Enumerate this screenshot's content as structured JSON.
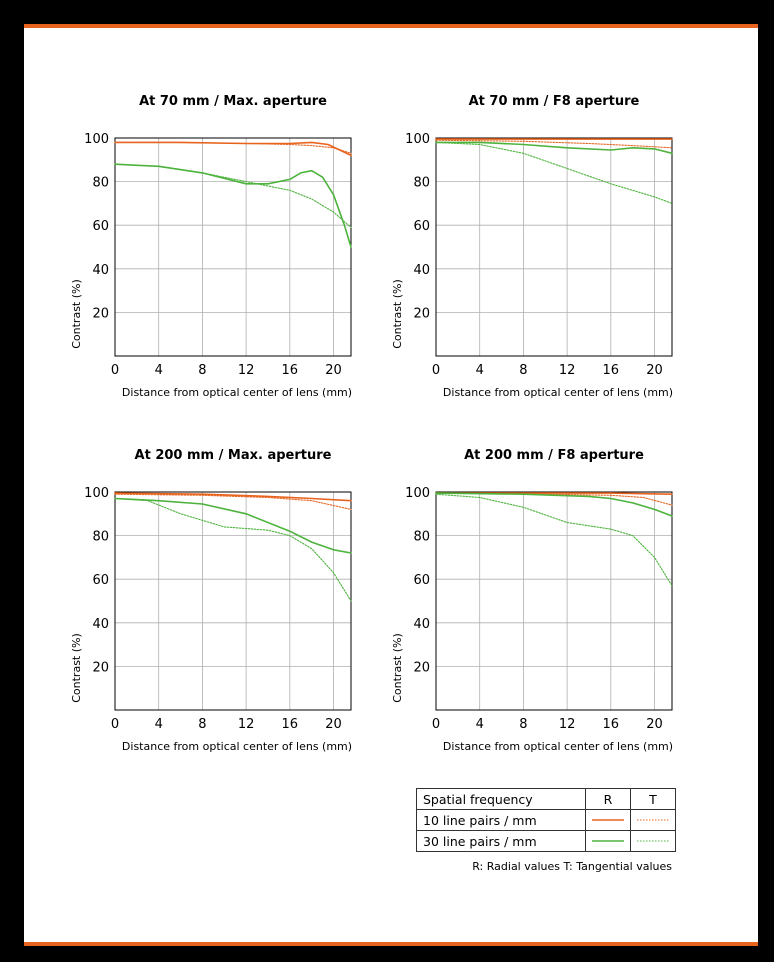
{
  "colors": {
    "accent": "#e8641e",
    "r10": "#e8641e",
    "r30": "#4db33d"
  },
  "chart_data": [
    {
      "type": "line",
      "title": "At 70 mm / Max. aperture",
      "xlabel": "Distance from optical center of lens (mm)",
      "ylabel": "Contrast (%)",
      "xlim": [
        0,
        21.6
      ],
      "ylim": [
        0,
        100
      ],
      "xticks": [
        0,
        4,
        8,
        12,
        16,
        20
      ],
      "yticks": [
        20,
        40,
        60,
        80,
        100
      ],
      "series": [
        {
          "freq": "10 line pairs / mm",
          "kind": "R",
          "color": "#e8641e",
          "dashed": false,
          "points": [
            [
              0,
              98
            ],
            [
              6,
              98
            ],
            [
              12,
              97.5
            ],
            [
              16,
              97.5
            ],
            [
              18,
              98
            ],
            [
              19.5,
              97
            ],
            [
              21.6,
              92
            ]
          ]
        },
        {
          "freq": "10 line pairs / mm",
          "kind": "T",
          "color": "#e8641e",
          "dashed": true,
          "points": [
            [
              0,
              98
            ],
            [
              6,
              98
            ],
            [
              12,
              97.5
            ],
            [
              16,
              97
            ],
            [
              18,
              96.5
            ],
            [
              20,
              95.5
            ],
            [
              21.6,
              93
            ]
          ]
        },
        {
          "freq": "30 line pairs / mm",
          "kind": "R",
          "color": "#4db33d",
          "dashed": false,
          "points": [
            [
              0,
              88
            ],
            [
              4,
              87
            ],
            [
              8,
              84
            ],
            [
              12,
              79
            ],
            [
              14,
              79
            ],
            [
              16,
              81
            ],
            [
              17,
              84
            ],
            [
              18,
              85
            ],
            [
              19,
              82
            ],
            [
              20,
              74
            ],
            [
              21,
              60
            ],
            [
              21.6,
              50
            ]
          ]
        },
        {
          "freq": "30 line pairs / mm",
          "kind": "T",
          "color": "#4db33d",
          "dashed": true,
          "points": [
            [
              0,
              88
            ],
            [
              4,
              87
            ],
            [
              8,
              84
            ],
            [
              12,
              80
            ],
            [
              14,
              78
            ],
            [
              16,
              76
            ],
            [
              18,
              72
            ],
            [
              20,
              66
            ],
            [
              21.6,
              59
            ]
          ]
        }
      ]
    },
    {
      "type": "line",
      "title": "At 70 mm / F8 aperture",
      "xlabel": "Distance from optical center of lens (mm)",
      "ylabel": "Contrast (%)",
      "xlim": [
        0,
        21.6
      ],
      "ylim": [
        0,
        100
      ],
      "xticks": [
        0,
        4,
        8,
        12,
        16,
        20
      ],
      "yticks": [
        20,
        40,
        60,
        80,
        100
      ],
      "series": [
        {
          "freq": "10 line pairs / mm",
          "kind": "R",
          "color": "#e8641e",
          "dashed": false,
          "points": [
            [
              0,
              99.5
            ],
            [
              8,
              99.5
            ],
            [
              16,
              99.5
            ],
            [
              21.6,
              99.5
            ]
          ]
        },
        {
          "freq": "10 line pairs / mm",
          "kind": "T",
          "color": "#e8641e",
          "dashed": true,
          "points": [
            [
              0,
              99
            ],
            [
              8,
              98.5
            ],
            [
              14,
              97.5
            ],
            [
              18,
              96.5
            ],
            [
              21.6,
              95.5
            ]
          ]
        },
        {
          "freq": "30 line pairs / mm",
          "kind": "R",
          "color": "#4db33d",
          "dashed": false,
          "points": [
            [
              0,
              98
            ],
            [
              4,
              98
            ],
            [
              8,
              97
            ],
            [
              12,
              95.5
            ],
            [
              16,
              94.5
            ],
            [
              18,
              95.5
            ],
            [
              20,
              95
            ],
            [
              21.6,
              93
            ]
          ]
        },
        {
          "freq": "30 line pairs / mm",
          "kind": "T",
          "color": "#4db33d",
          "dashed": true,
          "points": [
            [
              0,
              98
            ],
            [
              4,
              97
            ],
            [
              8,
              93
            ],
            [
              12,
              86
            ],
            [
              16,
              79
            ],
            [
              20,
              73
            ],
            [
              21.6,
              70
            ]
          ]
        }
      ]
    },
    {
      "type": "line",
      "title": "At 200 mm / Max. aperture",
      "xlabel": "Distance from optical center of lens (mm)",
      "ylabel": "Contrast (%)",
      "xlim": [
        0,
        21.6
      ],
      "ylim": [
        0,
        100
      ],
      "xticks": [
        0,
        4,
        8,
        12,
        16,
        20
      ],
      "yticks": [
        20,
        40,
        60,
        80,
        100
      ],
      "series": [
        {
          "freq": "10 line pairs / mm",
          "kind": "R",
          "color": "#e8641e",
          "dashed": false,
          "points": [
            [
              0,
              99.5
            ],
            [
              8,
              99
            ],
            [
              14,
              98
            ],
            [
              18,
              97
            ],
            [
              21.6,
              96
            ]
          ]
        },
        {
          "freq": "10 line pairs / mm",
          "kind": "T",
          "color": "#e8641e",
          "dashed": true,
          "points": [
            [
              0,
              99
            ],
            [
              8,
              98.5
            ],
            [
              14,
              97.5
            ],
            [
              18,
              96
            ],
            [
              21.6,
              92
            ]
          ]
        },
        {
          "freq": "30 line pairs / mm",
          "kind": "R",
          "color": "#4db33d",
          "dashed": false,
          "points": [
            [
              0,
              97
            ],
            [
              4,
              96
            ],
            [
              8,
              94.5
            ],
            [
              12,
              90
            ],
            [
              16,
              82
            ],
            [
              18,
              77
            ],
            [
              20,
              73.5
            ],
            [
              21.6,
              72
            ]
          ]
        },
        {
          "freq": "30 line pairs / mm",
          "kind": "T",
          "color": "#4db33d",
          "dashed": true,
          "points": [
            [
              0,
              97
            ],
            [
              3,
              96
            ],
            [
              6,
              90
            ],
            [
              10,
              84
            ],
            [
              14,
              82.5
            ],
            [
              16,
              80
            ],
            [
              18,
              74
            ],
            [
              20,
              63
            ],
            [
              21.6,
              50
            ]
          ]
        }
      ]
    },
    {
      "type": "line",
      "title": "At 200 mm / F8 aperture",
      "xlabel": "Distance from optical center of lens (mm)",
      "ylabel": "Contrast (%)",
      "xlim": [
        0,
        21.6
      ],
      "ylim": [
        0,
        100
      ],
      "xticks": [
        0,
        4,
        8,
        12,
        16,
        20
      ],
      "yticks": [
        20,
        40,
        60,
        80,
        100
      ],
      "series": [
        {
          "freq": "10 line pairs / mm",
          "kind": "R",
          "color": "#e8641e",
          "dashed": false,
          "points": [
            [
              0,
              99.5
            ],
            [
              10,
              99.5
            ],
            [
              16,
              99.5
            ],
            [
              21.6,
              99
            ]
          ]
        },
        {
          "freq": "10 line pairs / mm",
          "kind": "T",
          "color": "#e8641e",
          "dashed": true,
          "points": [
            [
              0,
              99.5
            ],
            [
              10,
              99
            ],
            [
              16,
              98.5
            ],
            [
              19,
              97.5
            ],
            [
              21.6,
              94
            ]
          ]
        },
        {
          "freq": "30 line pairs / mm",
          "kind": "R",
          "color": "#4db33d",
          "dashed": false,
          "points": [
            [
              0,
              99.5
            ],
            [
              8,
              99
            ],
            [
              14,
              98
            ],
            [
              16,
              97
            ],
            [
              18,
              95
            ],
            [
              20,
              92
            ],
            [
              21.6,
              89
            ]
          ]
        },
        {
          "freq": "30 line pairs / mm",
          "kind": "T",
          "color": "#4db33d",
          "dashed": true,
          "points": [
            [
              0,
              99
            ],
            [
              4,
              97.5
            ],
            [
              8,
              93
            ],
            [
              12,
              86
            ],
            [
              16,
              83
            ],
            [
              18,
              80
            ],
            [
              20,
              70
            ],
            [
              21.6,
              57
            ]
          ]
        }
      ]
    }
  ],
  "legend": {
    "header": "Spatial frequency",
    "col_r": "R",
    "col_t": "T",
    "row_10": "10 line pairs / mm",
    "row_30": "30 line pairs / mm",
    "note": "R: Radial values  T: Tangential values"
  }
}
